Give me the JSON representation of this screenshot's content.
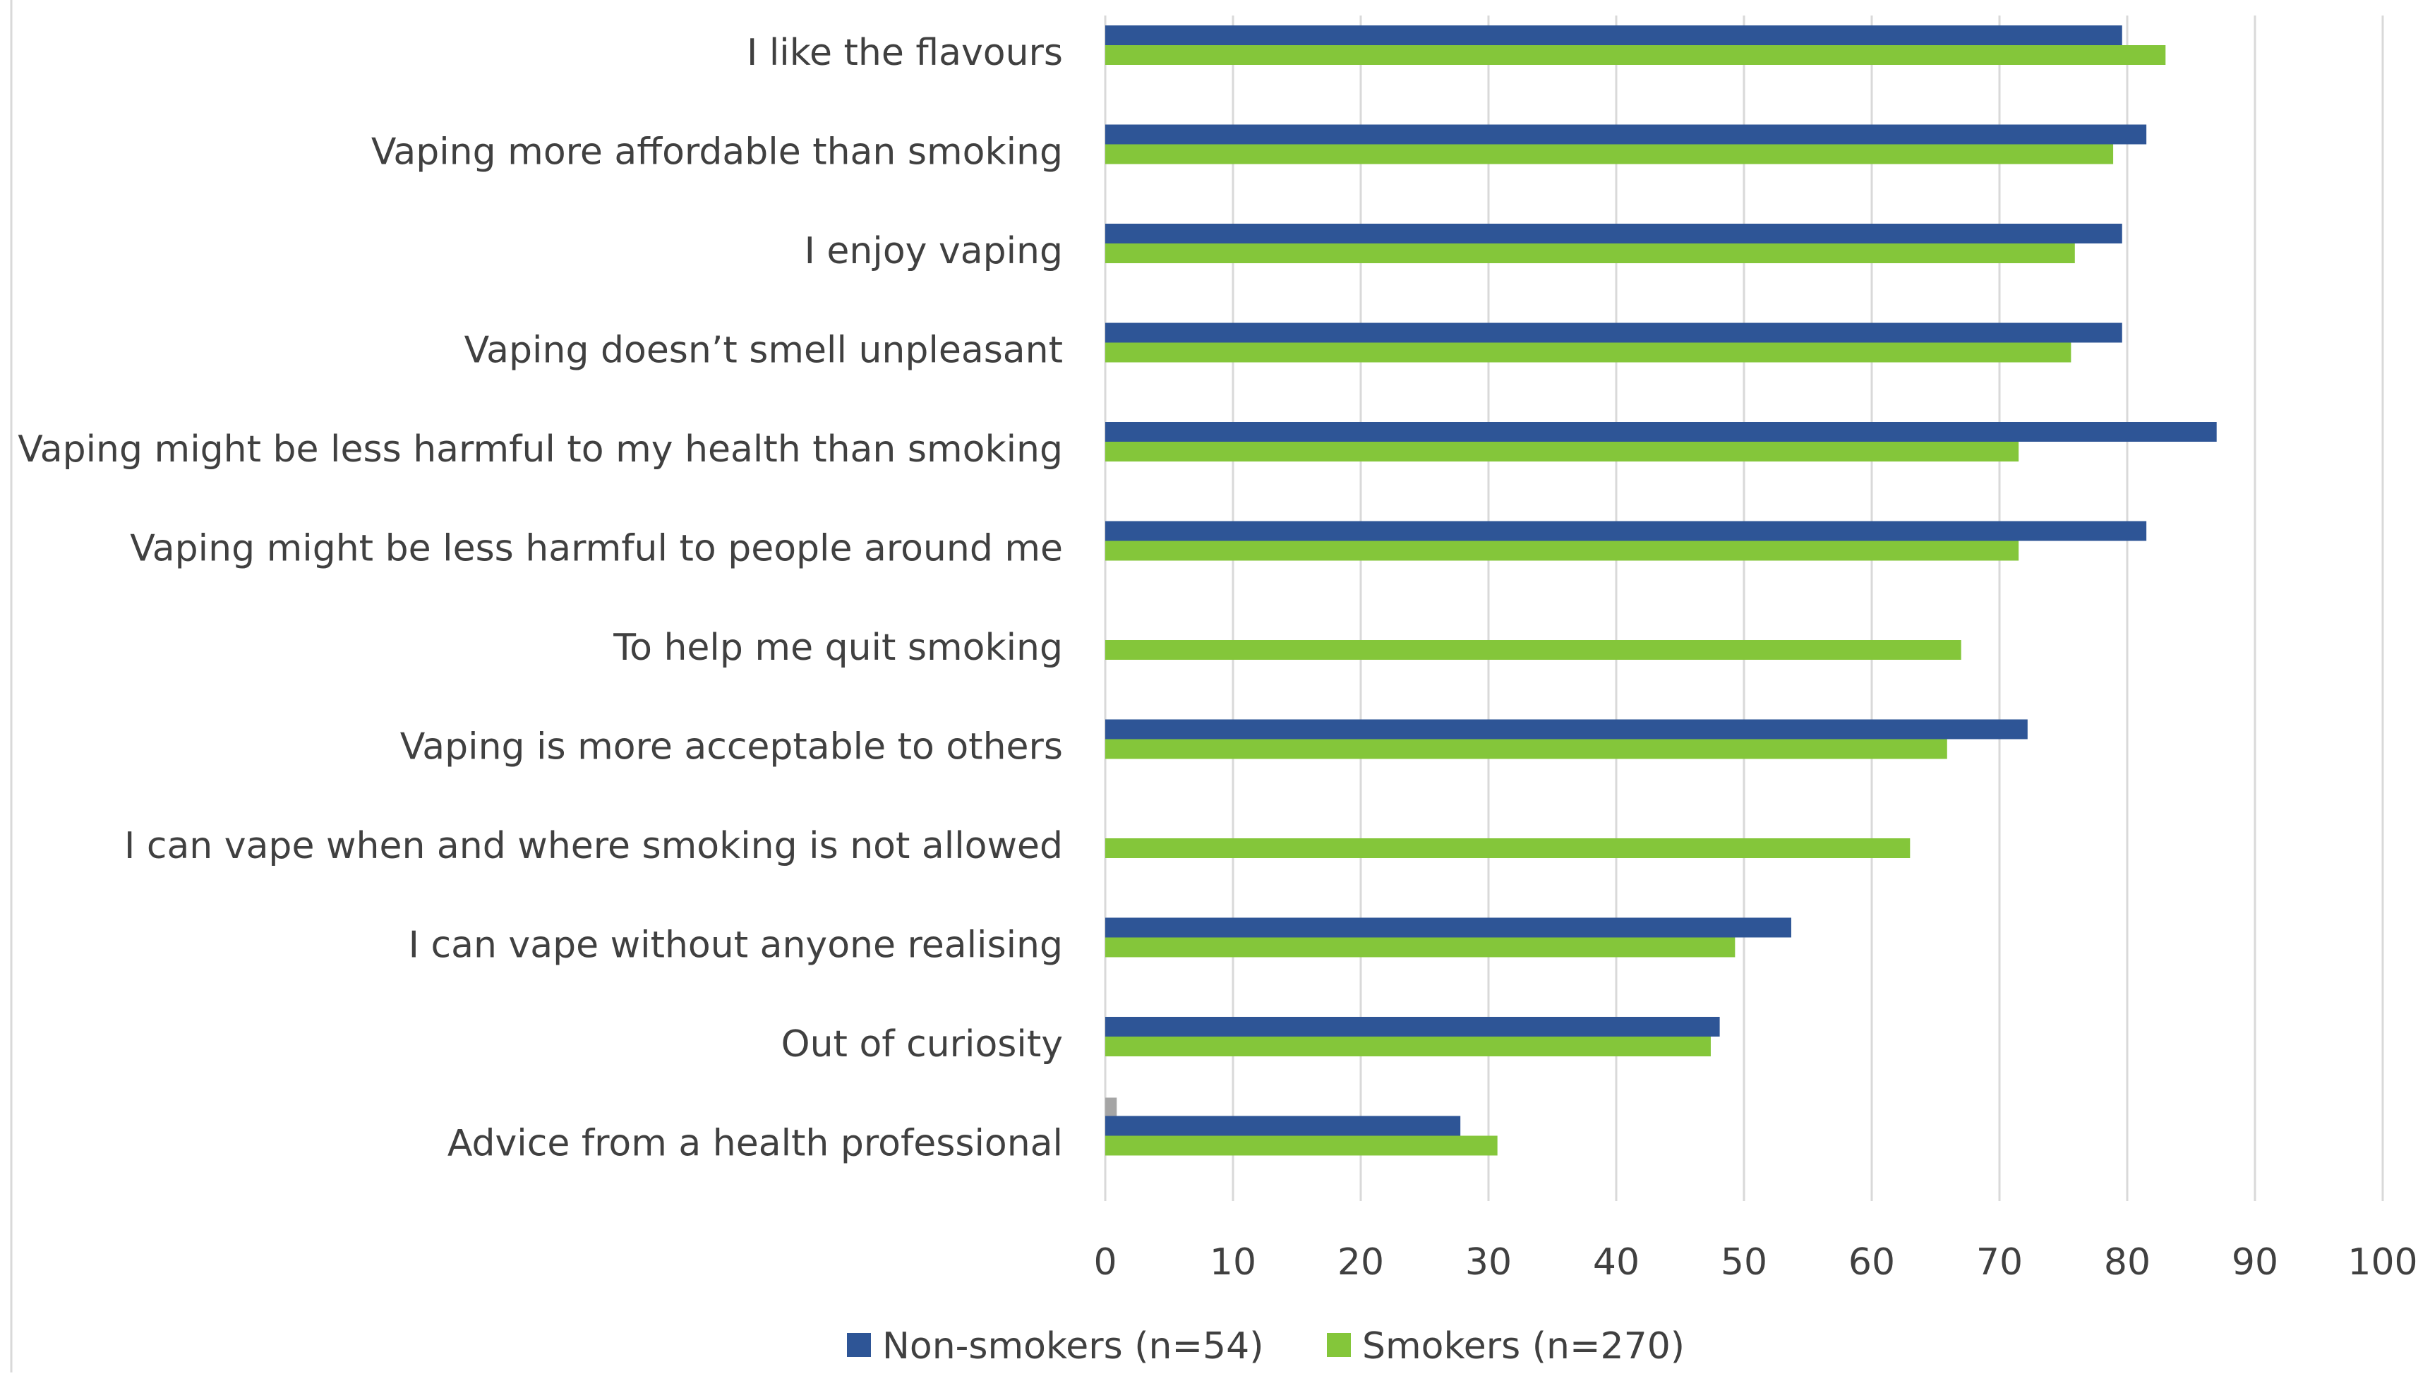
{
  "chart_data": {
    "type": "bar",
    "orientation": "horizontal",
    "title": "",
    "xlabel": "",
    "ylabel": "",
    "xlim": [
      0,
      100
    ],
    "x_ticks": [
      "0",
      "10",
      "20",
      "30",
      "40",
      "50",
      "60",
      "70",
      "80",
      "90",
      "100"
    ],
    "grid": "vertical",
    "legend": "bottom",
    "categories": [
      "I like the flavours",
      "Vaping more affordable than smoking",
      "I enjoy vaping",
      "Vaping doesn’t smell unpleasant",
      "Vaping might be less harmful to my health than smoking",
      "Vaping might be less harmful to people around me",
      "To help me quit smoking",
      "Vaping is more acceptable to others",
      "I can vape when and where smoking is not allowed",
      "I can vape without anyone realising",
      "Out of curiosity",
      "Advice from a health professional"
    ],
    "series": [
      {
        "name": "Non-smokers (n=54)",
        "color": "#2E5596",
        "values": [
          79.6,
          81.5,
          79.6,
          79.6,
          87.0,
          81.5,
          null,
          72.2,
          null,
          53.7,
          48.1,
          27.8
        ]
      },
      {
        "name": "Smokers (n=270)",
        "color": "#84C63A",
        "values": [
          83.0,
          78.9,
          75.9,
          75.6,
          71.5,
          71.5,
          67.0,
          65.9,
          63.0,
          49.3,
          47.4,
          30.7
        ]
      },
      {
        "color": "#A5A5A5",
        "values": [
          null,
          null,
          null,
          null,
          null,
          null,
          null,
          null,
          null,
          null,
          null,
          0.9
        ]
      }
    ]
  }
}
